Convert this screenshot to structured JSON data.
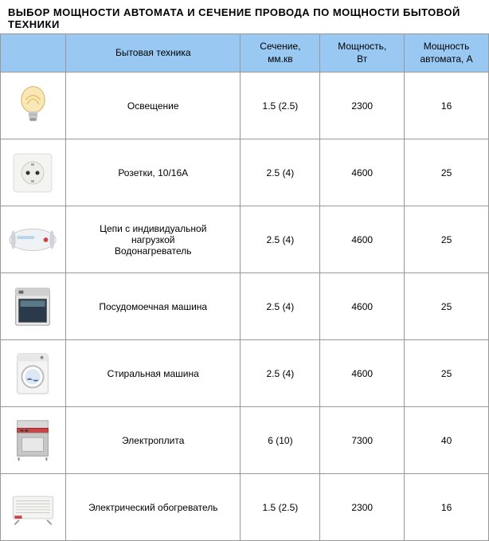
{
  "title": "ВЫБОР МОЩНОСТИ АВТОМАТА И СЕЧЕНИЕ ПРОВОДА ПО МОЩНОСТИ БЫТОВОЙ ТЕХНИКИ",
  "columns": {
    "appliance": "Бытовая техника",
    "section": "Сечение,\nмм.кв",
    "power": "Мощность,\nВт",
    "breaker": "Мощность\nавтомата, А"
  },
  "header_bg": "#99c9f2",
  "border_color": "#999999",
  "rows": [
    {
      "icon": "bulb",
      "name": "Освещение",
      "section": "1.5 (2.5)",
      "power": "2300",
      "breaker": "16"
    },
    {
      "icon": "socket",
      "name": "Розетки, 10/16А",
      "section": "2.5 (4)",
      "power": "4600",
      "breaker": "25"
    },
    {
      "icon": "waterheater",
      "name": "Цепи с индивидуальной\nнагрузкой\nВодонагреватель",
      "section": "2.5 (4)",
      "power": "4600",
      "breaker": "25"
    },
    {
      "icon": "dishwasher",
      "name": "Посудомоечная машина",
      "section": "2.5 (4)",
      "power": "4600",
      "breaker": "25"
    },
    {
      "icon": "washer",
      "name": "Стиральная машина",
      "section": "2.5 (4)",
      "power": "4600",
      "breaker": "25"
    },
    {
      "icon": "stove",
      "name": "Электроплита",
      "section": "6 (10)",
      "power": "7300",
      "breaker": "40"
    },
    {
      "icon": "heater",
      "name": "Электрический обогреватель",
      "section": "1.5 (2.5)",
      "power": "2300",
      "breaker": "16"
    }
  ]
}
